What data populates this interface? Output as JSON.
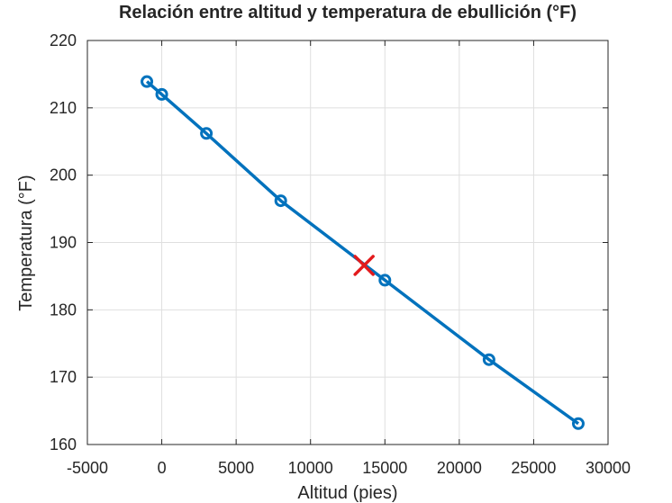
{
  "chart_data": {
    "type": "line",
    "title": "Relación entre altitud y temperatura de ebullición (°F)",
    "xlabel": "Altitud (pies)",
    "ylabel": "Temperatura (°F)",
    "xlim": [
      -5000,
      30000
    ],
    "ylim": [
      160,
      220
    ],
    "xticks": [
      -5000,
      0,
      5000,
      10000,
      15000,
      20000,
      25000,
      30000
    ],
    "yticks": [
      160,
      170,
      180,
      190,
      200,
      210,
      220
    ],
    "xtick_labels": [
      "-5000",
      "0",
      "5000",
      "10000",
      "15000",
      "20000",
      "25000",
      "30000"
    ],
    "ytick_labels": [
      "160",
      "170",
      "180",
      "190",
      "200",
      "210",
      "220"
    ],
    "grid": true,
    "series": [
      {
        "color": "#0072bd",
        "marker": "circle",
        "x": [
          -1000,
          0,
          3000,
          8000,
          15000,
          22000,
          28000
        ],
        "y": [
          213.9,
          212.0,
          206.2,
          196.2,
          184.4,
          172.6,
          163.1
        ]
      }
    ],
    "highlight": {
      "marker": "x",
      "color": "#e31a1c",
      "x": 13600,
      "y": 186.6
    }
  }
}
